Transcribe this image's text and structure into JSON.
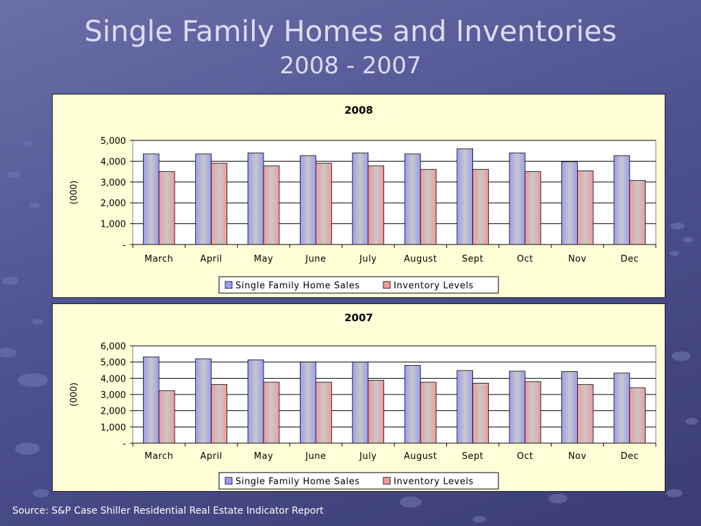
{
  "slide": {
    "title": "Single Family Homes and Inventories",
    "subtitle": "2008 - 2007",
    "source": "Source: S&P Case Shiller Residential Real Estate Indicator Report"
  },
  "chart_data": [
    {
      "type": "bar",
      "title": "2008",
      "ylabel": "(000)",
      "xlabel": "",
      "ylim": [
        0,
        5000
      ],
      "yticks": [
        0,
        1000,
        2000,
        3000,
        4000,
        5000
      ],
      "ytick_labels": [
        "-",
        "1,000",
        "2,000",
        "3,000",
        "4,000",
        "5,000"
      ],
      "categories": [
        "March",
        "April",
        "May",
        "June",
        "July",
        "August",
        "Sept",
        "Oct",
        "Nov",
        "Dec"
      ],
      "series": [
        {
          "name": "Single Family Home Sales",
          "values": [
            4350,
            4350,
            4400,
            4270,
            4400,
            4350,
            4600,
            4400,
            3980,
            4270
          ]
        },
        {
          "name": "Inventory Levels",
          "values": [
            3500,
            3910,
            3780,
            3910,
            3780,
            3610,
            3610,
            3500,
            3540,
            3080
          ]
        }
      ],
      "legend": "bottom",
      "grid": true
    },
    {
      "type": "bar",
      "title": "2007",
      "ylabel": "(000)",
      "xlabel": "",
      "ylim": [
        0,
        6000
      ],
      "yticks": [
        0,
        1000,
        2000,
        3000,
        4000,
        5000,
        6000
      ],
      "ytick_labels": [
        "-",
        "1,000",
        "2,000",
        "3,000",
        "4,000",
        "5,000",
        "6,000"
      ],
      "categories": [
        "March",
        "April",
        "May",
        "June",
        "July",
        "August",
        "Sept",
        "Oct",
        "Nov",
        "Dec"
      ],
      "series": [
        {
          "name": "Single Family Home Sales",
          "values": [
            5320,
            5200,
            5140,
            5000,
            5000,
            4800,
            4480,
            4440,
            4420,
            4320
          ]
        },
        {
          "name": "Inventory Levels",
          "values": [
            3240,
            3620,
            3760,
            3760,
            3880,
            3760,
            3700,
            3800,
            3620,
            3420
          ]
        }
      ],
      "legend": "bottom",
      "grid": true
    }
  ],
  "colors": {
    "sales_fill": "#9c9cf4",
    "inventory_fill": "#f2999b",
    "panel_bg": "#fffed6"
  }
}
